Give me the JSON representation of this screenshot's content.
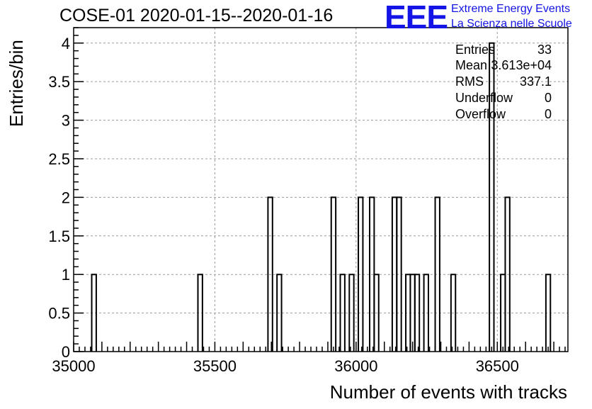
{
  "header": {
    "title": "COSE-01 2020-01-15--2020-01-16"
  },
  "logo": {
    "mark": "EEE",
    "line1": "Extreme Energy Events",
    "line2": "La Scienza nelle Scuole",
    "color": "#1414e6"
  },
  "stats": {
    "rows": [
      {
        "label": "Entries",
        "value": "33"
      },
      {
        "label": "Mean",
        "value": "3.613e+04"
      },
      {
        "label": "RMS",
        "value": "337.1"
      },
      {
        "label": "Underflow",
        "value": "0"
      },
      {
        "label": "Overflow",
        "value": "0"
      }
    ]
  },
  "chart_data": {
    "type": "histogram",
    "title": "COSE-01 2020-01-15--2020-01-16",
    "xlabel": "Number of events with tracks",
    "ylabel": "Entries/bin",
    "xlim": [
      35000,
      36750
    ],
    "ylim": [
      0,
      4.2
    ],
    "bin_width": 16,
    "x_ticks": [
      35000,
      35500,
      36000,
      36500
    ],
    "x_tick_labels": [
      "35000",
      "35500",
      "36000",
      "36500"
    ],
    "y_ticks": [
      0,
      0.5,
      1,
      1.5,
      2,
      2.5,
      3,
      3.5,
      4
    ],
    "y_tick_labels": [
      "0",
      "0.5",
      "1",
      "1.5",
      "2",
      "2.5",
      "3",
      "3.5",
      "4"
    ],
    "grid": true,
    "line_color": "#000000",
    "bins": [
      {
        "x0": 35064,
        "x1": 35080,
        "count": 1
      },
      {
        "x0": 35440,
        "x1": 35456,
        "count": 1
      },
      {
        "x0": 35688,
        "x1": 35704,
        "count": 2
      },
      {
        "x0": 35720,
        "x1": 35736,
        "count": 1
      },
      {
        "x0": 35912,
        "x1": 35928,
        "count": 2
      },
      {
        "x0": 35944,
        "x1": 35960,
        "count": 1
      },
      {
        "x0": 35976,
        "x1": 35992,
        "count": 1
      },
      {
        "x0": 36008,
        "x1": 36024,
        "count": 2
      },
      {
        "x0": 36048,
        "x1": 36064,
        "count": 2
      },
      {
        "x0": 36064,
        "x1": 36080,
        "count": 1
      },
      {
        "x0": 36128,
        "x1": 36144,
        "count": 2
      },
      {
        "x0": 36144,
        "x1": 36160,
        "count": 2
      },
      {
        "x0": 36176,
        "x1": 36192,
        "count": 1
      },
      {
        "x0": 36192,
        "x1": 36208,
        "count": 1
      },
      {
        "x0": 36208,
        "x1": 36224,
        "count": 1
      },
      {
        "x0": 36240,
        "x1": 36256,
        "count": 1
      },
      {
        "x0": 36280,
        "x1": 36296,
        "count": 2
      },
      {
        "x0": 36336,
        "x1": 36352,
        "count": 1
      },
      {
        "x0": 36472,
        "x1": 36488,
        "count": 4
      },
      {
        "x0": 36512,
        "x1": 36528,
        "count": 1
      },
      {
        "x0": 36528,
        "x1": 36544,
        "count": 2
      },
      {
        "x0": 36672,
        "x1": 36688,
        "count": 1
      }
    ]
  }
}
